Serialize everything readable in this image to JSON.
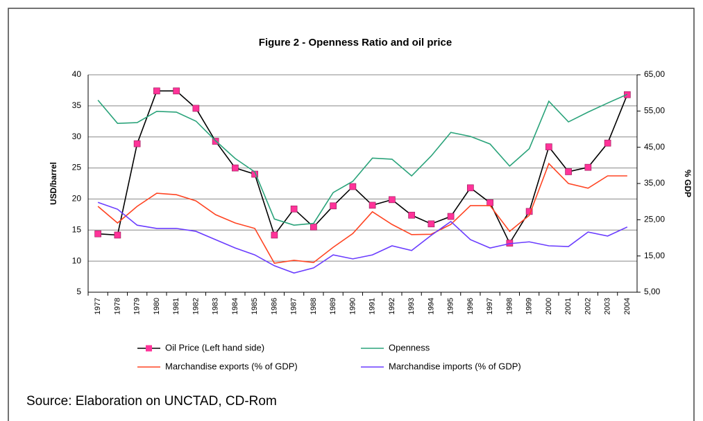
{
  "chart_data": {
    "type": "line",
    "title": "Figure 2 - Openness Ratio and oil price",
    "ylabel": "USD/barrel",
    "y2label": "% GDP",
    "source": "Source: Elaboration on UNCTAD, CD-Rom",
    "categories": [
      "1977",
      "1978",
      "1979",
      "1980",
      "1981",
      "1982",
      "1983",
      "1984",
      "1985",
      "1986",
      "1987",
      "1988",
      "1989",
      "1990",
      "1991",
      "1992",
      "1993",
      "1994",
      "1995",
      "1996",
      "1997",
      "1998",
      "1999",
      "2000",
      "2001",
      "2002",
      "2003",
      "2004"
    ],
    "ylim": [
      5,
      40
    ],
    "yticks": [
      5,
      10,
      15,
      20,
      25,
      30,
      35,
      40
    ],
    "y2lim": [
      5,
      65
    ],
    "y2ticks": [
      {
        "value": 5,
        "label": "5,00"
      },
      {
        "value": 15,
        "label": "15,00"
      },
      {
        "value": 25,
        "label": "25,00"
      },
      {
        "value": 35,
        "label": "35,00"
      },
      {
        "value": 45,
        "label": "45,00"
      },
      {
        "value": 55,
        "label": "55,00"
      },
      {
        "value": 65,
        "label": "65,00"
      }
    ],
    "grid": true,
    "series": [
      {
        "name": "Oil Price (Left hand side)",
        "color": "#000000",
        "marker_color": "#ff3399",
        "values": [
          14.4,
          14.2,
          28.9,
          37.4,
          37.4,
          34.6,
          29.3,
          25.0,
          24.0,
          14.2,
          18.4,
          15.5,
          18.9,
          22.0,
          19.0,
          19.9,
          17.4,
          16.0,
          17.2,
          21.8,
          19.4,
          12.9,
          18.0,
          28.4,
          24.4,
          25.1,
          29.0,
          36.8
        ]
      },
      {
        "name": "Openness",
        "color": "#2aa37a",
        "axis": "y2",
        "values": [
          58.0,
          51.6,
          51.8,
          54.9,
          54.7,
          52.2,
          46.8,
          41.9,
          38.2,
          25.2,
          23.5,
          24.0,
          32.5,
          35.6,
          42.0,
          41.7,
          37.1,
          42.6,
          49.1,
          48.0,
          45.9,
          39.8,
          44.6,
          57.7,
          52.0,
          54.7,
          57.2,
          59.6
        ]
      },
      {
        "name": "Marchandise exports (% of GDP)",
        "color": "#ff4422",
        "axis": "y2",
        "values": [
          28.7,
          24.1,
          28.7,
          32.3,
          31.9,
          30.2,
          26.4,
          24.1,
          22.6,
          13.0,
          13.8,
          13.2,
          17.4,
          21.2,
          27.2,
          23.7,
          20.9,
          21.0,
          23.7,
          28.9,
          28.9,
          21.8,
          26.2,
          40.5,
          35.0,
          33.7,
          37.1,
          37.1
        ]
      },
      {
        "name": "Marchandise imports (% of GDP)",
        "color": "#6a3cff",
        "axis": "y2",
        "values": [
          29.8,
          27.9,
          23.5,
          22.6,
          22.6,
          21.8,
          19.5,
          17.2,
          15.3,
          12.3,
          10.3,
          11.7,
          15.3,
          14.2,
          15.3,
          17.8,
          16.5,
          20.7,
          24.5,
          19.5,
          17.2,
          18.4,
          18.9,
          17.8,
          17.6,
          21.6,
          20.5,
          23.0
        ]
      }
    ]
  }
}
